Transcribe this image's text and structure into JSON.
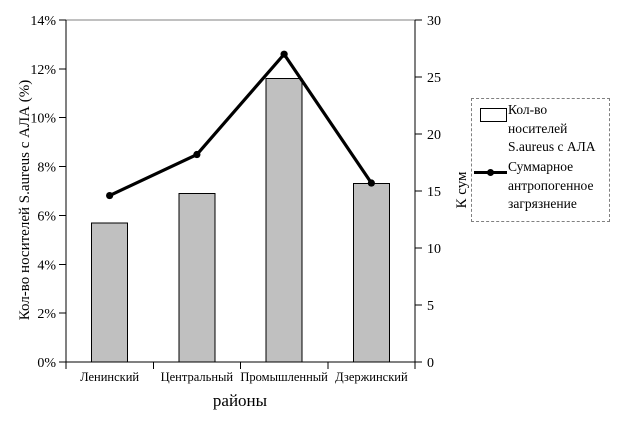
{
  "chart_data": {
    "type": "bar+line",
    "categories": [
      "Ленинский",
      "Центральный",
      "Промышленный",
      "Дзержинский"
    ],
    "series": [
      {
        "name": "Кол-во носителей S.aureus с АЛА",
        "type": "bar",
        "axis": "left",
        "values": [
          5.7,
          6.9,
          11.6,
          7.3
        ]
      },
      {
        "name": "Суммарное антропогенное загрязнение",
        "type": "line",
        "axis": "right",
        "values": [
          14.6,
          18.2,
          27,
          15.7
        ]
      }
    ],
    "left_axis": {
      "label": "Кол-во носителей S.aureus с АЛА (%)",
      "min": 0,
      "max": 14,
      "step": 2,
      "tick_labels": [
        "0%",
        "2%",
        "4%",
        "6%",
        "8%",
        "10%",
        "12%",
        "14%"
      ]
    },
    "right_axis": {
      "label": "К сум",
      "min": 0,
      "max": 30,
      "step": 5,
      "tick_labels": [
        "0",
        "5",
        "10",
        "15",
        "20",
        "25",
        "30"
      ]
    },
    "x_axis": {
      "label": "районы"
    },
    "legend": {
      "position": "right",
      "items": [
        {
          "swatch": "bar",
          "lines": [
            "Кол-во",
            "носителей",
            "S.aureus с АЛА"
          ]
        },
        {
          "swatch": "line",
          "lines": [
            "Суммарное",
            "антропогенное",
            "загрязнение"
          ]
        }
      ]
    },
    "grid": "top-border-only",
    "colors": {
      "background": "#ffffff",
      "bar_fill": "#c0c0c0",
      "bar_stroke": "#000000",
      "line_color": "#000000",
      "marker_color": "#000000",
      "axis_color": "#000000",
      "plot_border_color": "#808080",
      "legend_border_color": "#808080",
      "text_color": "#000000"
    }
  }
}
